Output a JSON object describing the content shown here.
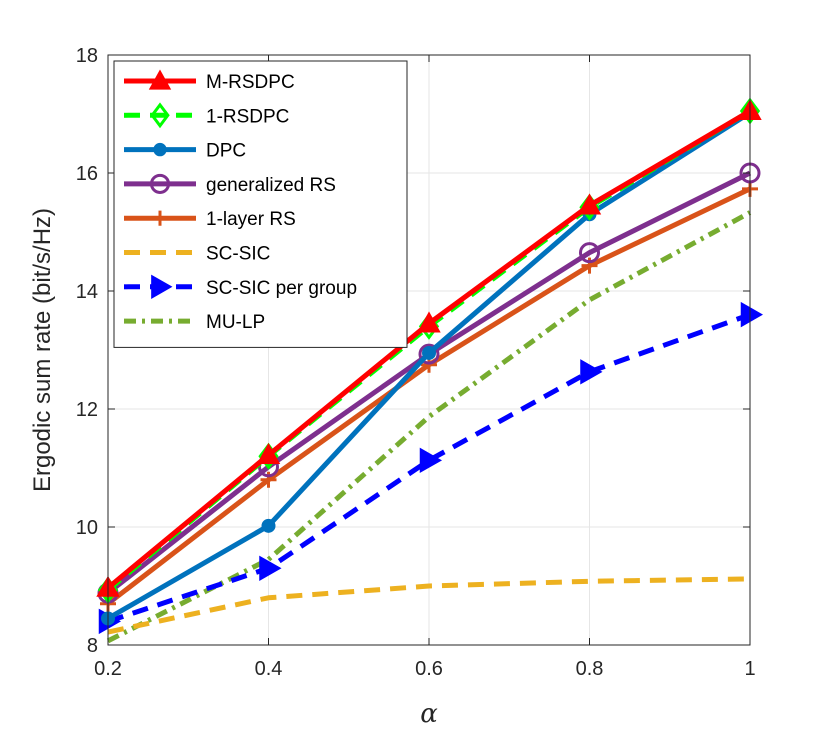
{
  "chart_data": {
    "type": "line",
    "title": "",
    "xlabel": "α",
    "ylabel": "Ergodic sum rate (bit/s/Hz)",
    "xlim": [
      0.2,
      1
    ],
    "ylim": [
      8,
      18
    ],
    "x_ticks": [
      "0.2",
      "0.4",
      "0.6",
      "0.8",
      "1"
    ],
    "y_ticks": [
      "8",
      "10",
      "12",
      "14",
      "16",
      "18"
    ],
    "grid": true,
    "legend_position": "top-left",
    "x": [
      0.2,
      0.4,
      0.6,
      0.8,
      1.0
    ],
    "series": [
      {
        "name": "M-RSDPC",
        "color": "#ff0000",
        "line": "solid",
        "marker": "triangle-up",
        "values": [
          8.97,
          11.22,
          13.45,
          15.45,
          17.05
        ]
      },
      {
        "name": "1-RSDPC",
        "color": "#00ff00",
        "line": "dashed",
        "marker": "diamond",
        "values": [
          8.93,
          11.2,
          13.4,
          15.42,
          17.05
        ]
      },
      {
        "name": "DPC",
        "color": "#0072bd",
        "line": "solid",
        "marker": "filled-circle",
        "values": [
          8.45,
          10.02,
          12.95,
          15.3,
          17.02
        ]
      },
      {
        "name": "generalized RS",
        "color": "#7e2f8e",
        "line": "solid",
        "marker": "circle",
        "values": [
          8.88,
          11.02,
          12.93,
          14.65,
          16.0
        ]
      },
      {
        "name": "1-layer RS",
        "color": "#d95319",
        "line": "solid",
        "marker": "plus",
        "values": [
          8.7,
          10.8,
          12.75,
          14.43,
          15.73
        ]
      },
      {
        "name": "SC-SIC",
        "color": "#edb120",
        "line": "dashed",
        "marker": "none",
        "values": [
          8.22,
          8.8,
          9.0,
          9.08,
          9.12
        ]
      },
      {
        "name": "SC-SIC per group",
        "color": "#0000ff",
        "line": "dashed",
        "marker": "triangle-right",
        "values": [
          8.4,
          9.3,
          11.13,
          12.63,
          13.6
        ]
      },
      {
        "name": "MU-LP",
        "color": "#77ac30",
        "line": "dashdot",
        "marker": "none",
        "values": [
          8.07,
          9.45,
          11.87,
          13.85,
          15.33
        ]
      }
    ]
  }
}
